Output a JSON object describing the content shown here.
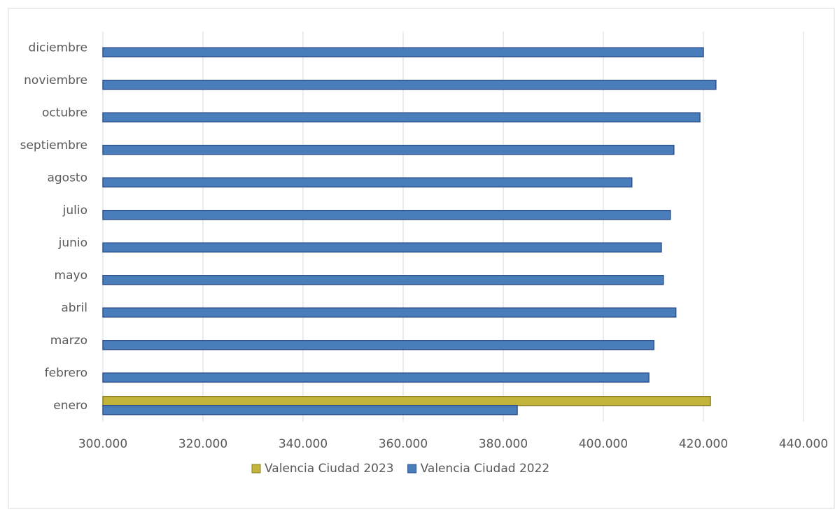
{
  "chart_data": {
    "type": "bar",
    "orientation": "horizontal",
    "categories": [
      "enero",
      "febrero",
      "marzo",
      "abril",
      "mayo",
      "junio",
      "julio",
      "agosto",
      "septiembre",
      "octubre",
      "noviembre",
      "diciembre"
    ],
    "series": [
      {
        "name": "Valencia Ciudad 2023",
        "color": "#c3b43c",
        "values": [
          421400,
          null,
          null,
          null,
          null,
          null,
          null,
          null,
          null,
          null,
          null,
          null
        ]
      },
      {
        "name": "Valencia Ciudad 2022",
        "color": "#4a7ebb",
        "values": [
          382800,
          409100,
          410100,
          414500,
          412000,
          411600,
          413400,
          405700,
          414100,
          419300,
          422500,
          420000
        ]
      }
    ],
    "xlim": [
      300000,
      440000
    ],
    "xticks": [
      {
        "value": 300000,
        "label": "300.000"
      },
      {
        "value": 320000,
        "label": "320.000"
      },
      {
        "value": 340000,
        "label": "340.000"
      },
      {
        "value": 360000,
        "label": "360.000"
      },
      {
        "value": 380000,
        "label": "380.000"
      },
      {
        "value": 400000,
        "label": "400.000"
      },
      {
        "value": 420000,
        "label": "420.000"
      },
      {
        "value": 440000,
        "label": "440.000"
      }
    ],
    "grid": true,
    "legend": "bottom"
  }
}
